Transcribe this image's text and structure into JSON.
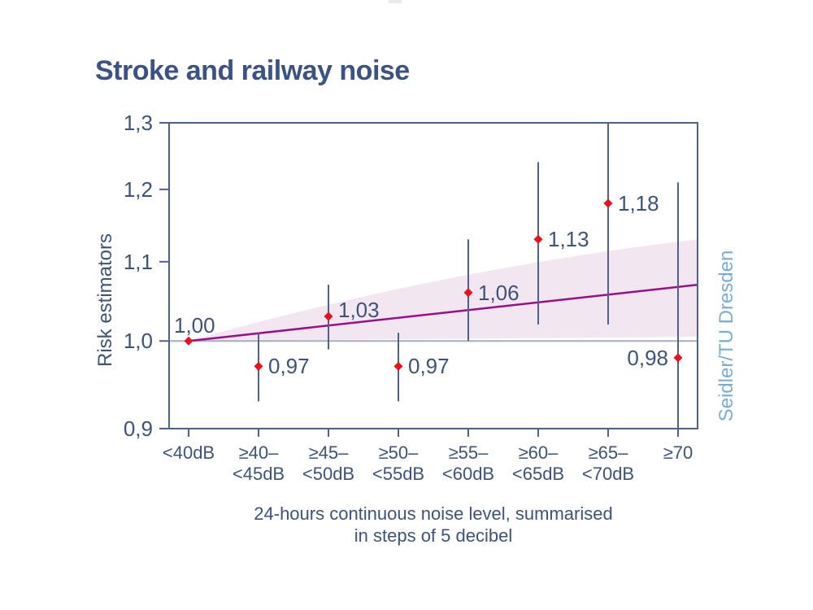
{
  "chart_data": {
    "type": "scatter",
    "title": "Stroke and railway noise",
    "ylabel": "Risk estimators",
    "xlabel_lines": [
      "24-hours continuous noise level, summarised",
      "in steps of 5 decibel"
    ],
    "credit": "Seidler/TU Dresden",
    "y_scale": "log",
    "ylim": [
      0.9,
      1.3
    ],
    "grid": "off",
    "legend": "none",
    "yticks": [
      {
        "value": 1.3,
        "label": "1,3"
      },
      {
        "value": 1.2,
        "label": "1,2"
      },
      {
        "value": 1.1,
        "label": "1,1"
      },
      {
        "value": 1.0,
        "label": "1,0"
      },
      {
        "value": 0.9,
        "label": "0,9"
      }
    ],
    "reference_value": 1.0,
    "categories": [
      {
        "lines": [
          "<40dB"
        ]
      },
      {
        "lines": [
          "≥40–",
          "<45dB"
        ]
      },
      {
        "lines": [
          "≥45–",
          "<50dB"
        ]
      },
      {
        "lines": [
          "≥50–",
          "<55dB"
        ]
      },
      {
        "lines": [
          "≥55–",
          "<60dB"
        ]
      },
      {
        "lines": [
          "≥60–",
          "<65dB"
        ]
      },
      {
        "lines": [
          "≥65–",
          "<70dB"
        ]
      },
      {
        "lines": [
          "≥70"
        ]
      }
    ],
    "points": [
      {
        "label": "1,00",
        "value": 1.0,
        "ci_low": null,
        "ci_high": null,
        "label_side": "above"
      },
      {
        "label": "0,97",
        "value": 0.97,
        "ci_low": 0.93,
        "ci_high": 1.01,
        "label_side": "right"
      },
      {
        "label": "1,03",
        "value": 1.03,
        "ci_low": 0.99,
        "ci_high": 1.07,
        "label_side": "right-up"
      },
      {
        "label": "0,97",
        "value": 0.97,
        "ci_low": 0.93,
        "ci_high": 1.01,
        "label_side": "right"
      },
      {
        "label": "1,06",
        "value": 1.06,
        "ci_low": 1.0,
        "ci_high": 1.13,
        "label_side": "right"
      },
      {
        "label": "1,13",
        "value": 1.13,
        "ci_low": 1.02,
        "ci_high": 1.24,
        "label_side": "right"
      },
      {
        "label": "1,18",
        "value": 1.18,
        "ci_low": 1.02,
        "ci_high": 1.3,
        "label_side": "right"
      },
      {
        "label": "0,98",
        "value": 0.98,
        "ci_low": 0.9,
        "ci_high": 1.21,
        "label_side": "left"
      }
    ],
    "trend_line": {
      "start_value": 1.0,
      "end_value": 1.07
    },
    "confidence_band": {
      "start_value": 1.0,
      "end_low": 1.005,
      "end_high": 1.13
    },
    "colors": {
      "text": "#3d5378",
      "title": "#3a5384",
      "axis": "#50608c",
      "marker": "#e8111c",
      "trend": "#9a0e89",
      "band": "#f2e6f1",
      "reference_line": "#a5aec6",
      "credit": "#77add7"
    }
  }
}
